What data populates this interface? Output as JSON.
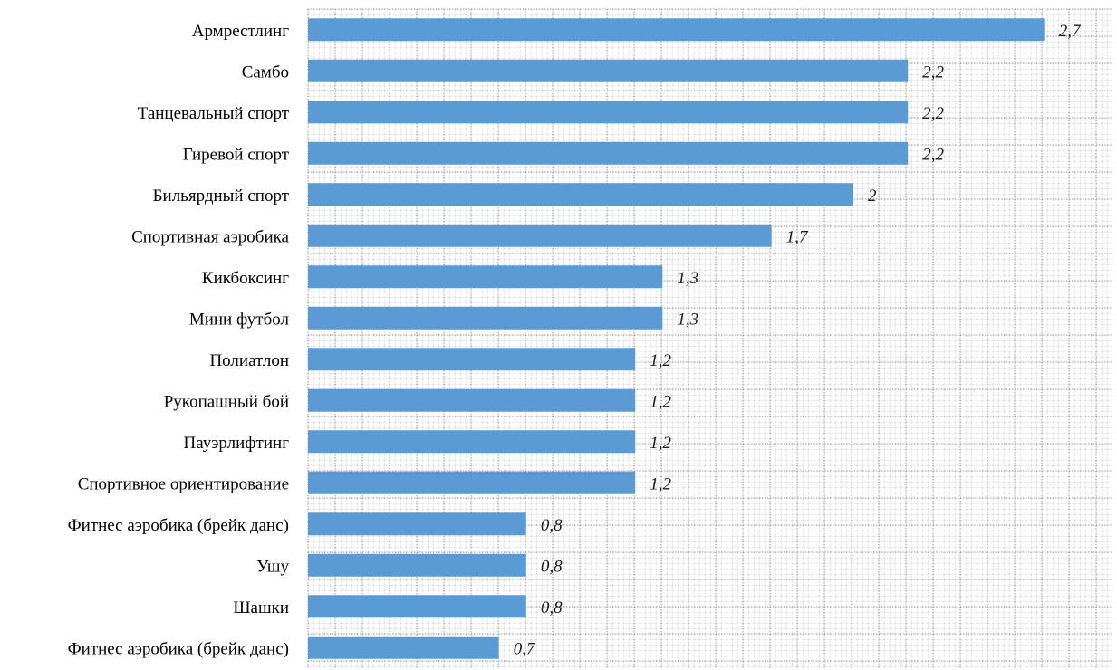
{
  "chart_data": {
    "type": "bar",
    "orientation": "horizontal",
    "categories": [
      "Армрестлинг",
      "Самбо",
      "Танцевальный спорт",
      "Гиревой спорт",
      "Бильярдный спорт",
      "Спортивная аэробика",
      "Кикбоксинг",
      "Мини футбол",
      "Полиатлон",
      "Рукопашный бой",
      "Пауэрлифтинг",
      "Спортивное ориентирование",
      "Фитнес аэробика (брейк данс)",
      "Ушу",
      "Шашки",
      "Фитнес аэробика (брейк данс)"
    ],
    "values": [
      2.7,
      2.2,
      2.2,
      2.2,
      2.0,
      1.7,
      1.3,
      1.3,
      1.2,
      1.2,
      1.2,
      1.2,
      0.8,
      0.8,
      0.8,
      0.7
    ],
    "value_labels": [
      "2,7",
      "2,2",
      "2,2",
      "2,2",
      "2",
      "1,7",
      "1,3",
      "1,3",
      "1,2",
      "1,2",
      "1,2",
      "1,2",
      "0,8",
      "0,8",
      "0,8",
      "0,7"
    ],
    "xlim": [
      0,
      2.95
    ],
    "grid": true,
    "bar_color": "#5b9bd5",
    "grid_color": "#9a9a9a",
    "legend": "none"
  }
}
